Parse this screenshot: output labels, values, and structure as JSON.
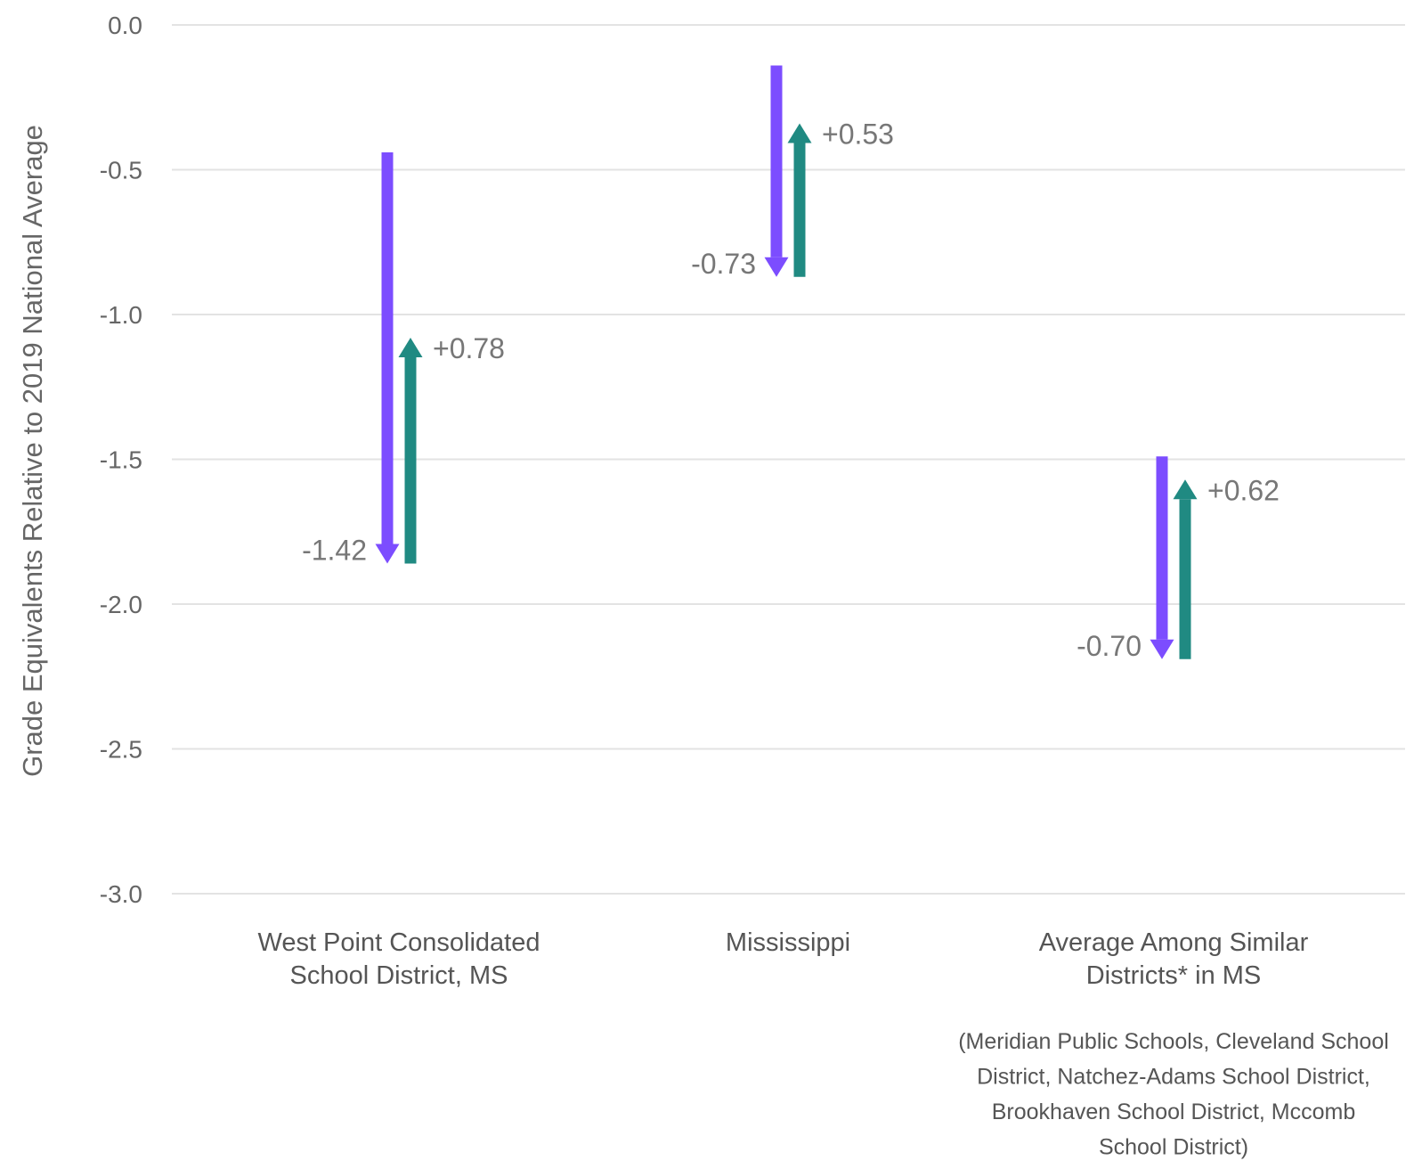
{
  "chart_data": {
    "type": "bar",
    "ylabel": "Grade Equivalents Relative to 2019 National Average",
    "ylim": [
      -3.0,
      0.0
    ],
    "yticks": [
      "0.0",
      "-0.5",
      "-1.0",
      "-1.5",
      "-2.0",
      "-2.5",
      "-3.0"
    ],
    "grid": true,
    "colors": {
      "decline": "#7c4dff",
      "recovery": "#208a82"
    },
    "categories": [
      {
        "lines": [
          "West Point Consolidated",
          "School District, MS"
        ],
        "decline": {
          "start": -0.44,
          "end": -1.86,
          "label": "-1.42"
        },
        "recovery": {
          "start": -1.86,
          "end": -1.08,
          "label": "+0.78"
        }
      },
      {
        "lines": [
          "Mississippi"
        ],
        "decline": {
          "start": -0.14,
          "end": -0.87,
          "label": "-0.73"
        },
        "recovery": {
          "start": -0.87,
          "end": -0.34,
          "label": "+0.53"
        }
      },
      {
        "lines": [
          "Average Among Similar",
          "Districts* in MS"
        ],
        "decline": {
          "start": -1.49,
          "end": -2.19,
          "label": "-0.70"
        },
        "recovery": {
          "start": -2.19,
          "end": -1.57,
          "label": "+0.62"
        }
      }
    ],
    "footnote": [
      "(Meridian Public Schools, Cleveland School",
      "District, Natchez-Adams School District,",
      "Brookhaven School District, Mccomb",
      "School District)"
    ]
  }
}
